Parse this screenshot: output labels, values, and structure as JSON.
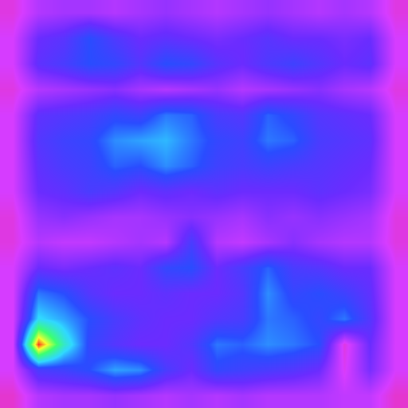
{
  "chart_data": {
    "type": "heatmap",
    "tick_labels": false,
    "xlim": [
      -0.5,
      15.5
    ],
    "ylim": [
      15.5,
      -0.5
    ],
    "color_range": [
      0,
      1
    ],
    "cells": [
      [
        0.12,
        0.2,
        0.22,
        0.22,
        0.2,
        0.22,
        0.24,
        0.22,
        0.2,
        0.22,
        0.24,
        0.22,
        0.2,
        0.22,
        0.2,
        0.12
      ],
      [
        0.15,
        0.3,
        0.33,
        0.42,
        0.35,
        0.3,
        0.32,
        0.3,
        0.28,
        0.3,
        0.33,
        0.3,
        0.3,
        0.28,
        0.3,
        0.15
      ],
      [
        0.15,
        0.32,
        0.36,
        0.42,
        0.4,
        0.34,
        0.42,
        0.4,
        0.33,
        0.3,
        0.35,
        0.38,
        0.34,
        0.3,
        0.32,
        0.15
      ],
      [
        0.12,
        0.2,
        0.22,
        0.24,
        0.26,
        0.22,
        0.2,
        0.22,
        0.24,
        0.2,
        0.22,
        0.24,
        0.26,
        0.22,
        0.2,
        0.12
      ],
      [
        0.15,
        0.32,
        0.34,
        0.36,
        0.4,
        0.38,
        0.46,
        0.44,
        0.36,
        0.34,
        0.44,
        0.4,
        0.34,
        0.32,
        0.3,
        0.15
      ],
      [
        0.15,
        0.34,
        0.38,
        0.4,
        0.48,
        0.5,
        0.52,
        0.46,
        0.4,
        0.38,
        0.46,
        0.44,
        0.36,
        0.34,
        0.32,
        0.15
      ],
      [
        0.15,
        0.32,
        0.36,
        0.38,
        0.44,
        0.42,
        0.48,
        0.44,
        0.38,
        0.36,
        0.38,
        0.36,
        0.34,
        0.32,
        0.3,
        0.15
      ],
      [
        0.15,
        0.3,
        0.32,
        0.36,
        0.34,
        0.3,
        0.32,
        0.3,
        0.32,
        0.3,
        0.3,
        0.3,
        0.32,
        0.3,
        0.28,
        0.15
      ],
      [
        0.12,
        0.24,
        0.26,
        0.24,
        0.22,
        0.22,
        0.24,
        0.26,
        0.24,
        0.22,
        0.26,
        0.24,
        0.26,
        0.24,
        0.22,
        0.12
      ],
      [
        0.12,
        0.2,
        0.18,
        0.18,
        0.2,
        0.22,
        0.2,
        0.36,
        0.2,
        0.18,
        0.22,
        0.26,
        0.22,
        0.2,
        0.2,
        0.12
      ],
      [
        0.15,
        0.3,
        0.28,
        0.3,
        0.32,
        0.3,
        0.4,
        0.42,
        0.3,
        0.36,
        0.44,
        0.36,
        0.34,
        0.3,
        0.3,
        0.15
      ],
      [
        0.15,
        0.46,
        0.42,
        0.34,
        0.3,
        0.3,
        0.32,
        0.3,
        0.3,
        0.34,
        0.48,
        0.4,
        0.42,
        0.38,
        0.32,
        0.15
      ],
      [
        0.15,
        0.56,
        0.5,
        0.42,
        0.36,
        0.32,
        0.3,
        0.3,
        0.34,
        0.36,
        0.46,
        0.44,
        0.4,
        0.46,
        0.34,
        0.15
      ],
      [
        0.15,
        0.98,
        0.62,
        0.4,
        0.34,
        0.3,
        0.3,
        0.34,
        0.46,
        0.44,
        0.48,
        0.46,
        0.42,
        0.12,
        0.3,
        0.15
      ],
      [
        0.15,
        0.36,
        0.38,
        0.42,
        0.5,
        0.48,
        0.36,
        0.3,
        0.4,
        0.38,
        0.36,
        0.34,
        0.3,
        0.14,
        0.28,
        0.15
      ],
      [
        0.1,
        0.2,
        0.22,
        0.22,
        0.24,
        0.22,
        0.2,
        0.22,
        0.2,
        0.22,
        0.2,
        0.2,
        0.2,
        0.18,
        0.18,
        0.1
      ]
    ]
  }
}
